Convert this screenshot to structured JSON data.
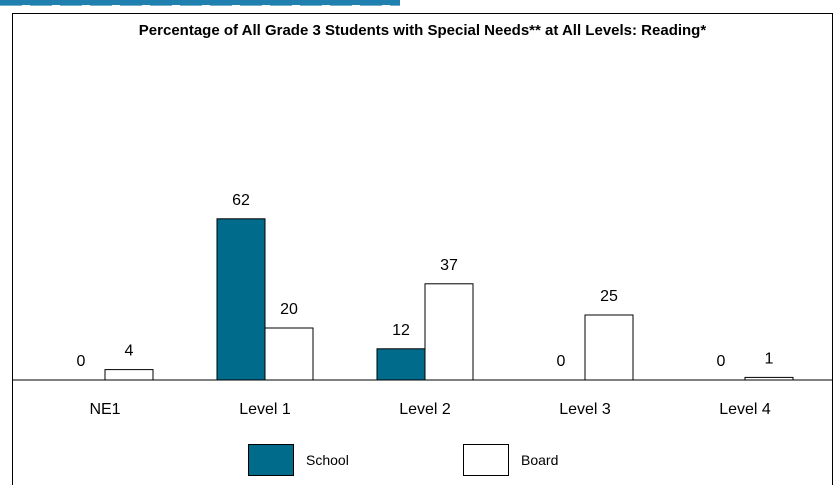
{
  "chart_data": {
    "type": "bar",
    "title": "Percentage of All Grade 3 Students with Special Needs** at All Levels: Reading*",
    "categories": [
      "NE1",
      "Level 1",
      "Level 2",
      "Level 3",
      "Level 4"
    ],
    "series": [
      {
        "name": "School",
        "values": [
          0,
          62,
          12,
          0,
          0
        ],
        "color": "#006b8a"
      },
      {
        "name": "Board",
        "values": [
          4,
          20,
          37,
          25,
          1
        ],
        "color": "#ffffff"
      }
    ],
    "ylim": [
      0,
      100
    ],
    "grid": false,
    "legend_position": "bottom"
  }
}
